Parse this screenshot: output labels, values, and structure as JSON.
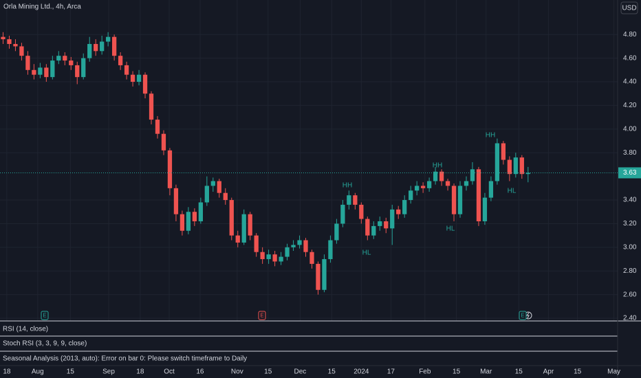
{
  "chart_data": {
    "type": "candlestick",
    "title": "Orla Mining Ltd., 4h, Arca",
    "currency": "USD",
    "up_color": "#26a69a",
    "down_color": "#ef5350",
    "grid": true,
    "open": [
      4.78,
      4.76,
      4.72,
      4.7,
      4.62,
      4.5,
      4.46,
      4.52,
      4.44,
      4.58,
      4.62,
      4.58,
      4.54,
      4.44,
      4.6,
      4.72,
      4.66,
      4.74,
      4.78,
      4.62,
      4.54,
      4.46,
      4.4,
      4.46,
      4.3,
      4.08,
      3.96,
      3.82,
      3.5,
      3.28,
      3.14,
      3.3,
      3.22,
      3.38,
      3.52,
      3.56,
      3.46,
      3.4,
      3.1,
      3.04,
      3.28,
      3.1,
      2.96,
      2.9,
      2.94,
      2.88,
      2.92,
      3.0,
      3.02,
      3.06,
      2.96,
      2.86,
      2.64,
      2.9,
      3.06,
      3.2,
      3.36,
      3.44,
      3.36,
      3.24,
      3.1,
      3.18,
      3.22,
      3.16,
      3.32,
      3.28,
      3.4,
      3.48,
      3.52,
      3.5,
      3.56,
      3.64,
      3.56,
      3.52,
      3.28,
      3.52,
      3.56,
      3.66,
      3.22,
      3.42,
      3.56,
      3.88,
      3.74,
      3.62,
      3.76,
      3.62
    ],
    "high": [
      4.82,
      4.79,
      4.76,
      4.73,
      4.66,
      4.55,
      4.56,
      4.55,
      4.62,
      4.66,
      4.65,
      4.61,
      4.57,
      4.64,
      4.78,
      4.76,
      4.79,
      4.82,
      4.8,
      4.65,
      4.57,
      4.49,
      4.5,
      4.48,
      4.32,
      4.11,
      3.99,
      3.84,
      3.53,
      3.31,
      3.34,
      3.33,
      3.42,
      3.6,
      3.59,
      3.58,
      3.5,
      3.42,
      3.14,
      3.32,
      3.3,
      3.12,
      3.0,
      2.98,
      2.97,
      2.96,
      3.03,
      3.06,
      3.1,
      3.08,
      2.98,
      2.88,
      2.94,
      3.1,
      3.24,
      3.4,
      3.48,
      3.46,
      3.38,
      3.26,
      3.22,
      3.26,
      3.25,
      3.36,
      3.35,
      3.44,
      3.52,
      3.56,
      3.55,
      3.59,
      3.68,
      3.66,
      3.58,
      3.54,
      3.56,
      3.6,
      3.72,
      3.68,
      3.46,
      3.6,
      3.92,
      3.9,
      3.77,
      3.8,
      3.78,
      3.68
    ],
    "low": [
      4.72,
      4.68,
      4.66,
      4.58,
      4.46,
      4.42,
      4.43,
      4.4,
      4.42,
      4.55,
      4.54,
      4.5,
      4.38,
      4.42,
      4.57,
      4.62,
      4.63,
      4.7,
      4.58,
      4.5,
      4.42,
      4.36,
      4.37,
      4.26,
      4.04,
      3.92,
      3.78,
      3.44,
      3.22,
      3.1,
      3.11,
      3.18,
      3.2,
      3.35,
      3.47,
      3.42,
      3.36,
      3.06,
      3.0,
      3.02,
      3.06,
      2.92,
      2.86,
      2.86,
      2.84,
      2.85,
      2.89,
      2.97,
      2.99,
      2.92,
      2.82,
      2.6,
      2.62,
      2.87,
      3.03,
      3.17,
      3.32,
      3.32,
      3.2,
      3.06,
      3.07,
      3.14,
      3.12,
      3.02,
      3.24,
      3.25,
      3.37,
      3.44,
      3.46,
      3.47,
      3.53,
      3.52,
      3.48,
      3.22,
      3.25,
      3.48,
      3.53,
      3.18,
      3.19,
      3.39,
      3.53,
      3.7,
      3.56,
      3.59,
      3.58,
      3.55
    ],
    "close": [
      4.76,
      4.72,
      4.7,
      4.62,
      4.5,
      4.46,
      4.52,
      4.44,
      4.58,
      4.62,
      4.58,
      4.54,
      4.44,
      4.6,
      4.72,
      4.66,
      4.74,
      4.78,
      4.62,
      4.54,
      4.46,
      4.4,
      4.46,
      4.3,
      4.08,
      3.96,
      3.82,
      3.5,
      3.28,
      3.14,
      3.3,
      3.22,
      3.38,
      3.52,
      3.56,
      3.46,
      3.4,
      3.1,
      3.04,
      3.28,
      3.1,
      2.96,
      2.9,
      2.94,
      2.88,
      2.92,
      3.0,
      3.02,
      3.06,
      2.96,
      2.86,
      2.64,
      2.9,
      3.06,
      3.2,
      3.36,
      3.44,
      3.36,
      3.24,
      3.1,
      3.18,
      3.22,
      3.16,
      3.32,
      3.28,
      3.4,
      3.48,
      3.52,
      3.5,
      3.56,
      3.64,
      3.56,
      3.52,
      3.28,
      3.52,
      3.56,
      3.66,
      3.22,
      3.42,
      3.56,
      3.88,
      3.74,
      3.62,
      3.76,
      3.62,
      3.63
    ],
    "ylim": [
      2.377,
      5.092
    ],
    "yticks": [
      {
        "value": 2.4,
        "label": "2.40"
      },
      {
        "value": 2.6,
        "label": "2.60"
      },
      {
        "value": 2.8,
        "label": "2.80"
      },
      {
        "value": 3.0,
        "label": "3.00"
      },
      {
        "value": 3.2,
        "label": "3.20"
      },
      {
        "value": 3.4,
        "label": "3.40"
      },
      {
        "value": 3.8,
        "label": "3.80"
      },
      {
        "value": 4.0,
        "label": "4.00"
      },
      {
        "value": 4.2,
        "label": "4.20"
      },
      {
        "value": 4.4,
        "label": "4.40"
      },
      {
        "value": 4.6,
        "label": "4.60"
      },
      {
        "value": 4.8,
        "label": "4.80"
      }
    ],
    "xlim": [
      -0.5,
      99.5
    ],
    "xticks": [
      {
        "value": 0.6,
        "label": "18"
      },
      {
        "value": 5.6,
        "label": "Aug"
      },
      {
        "value": 10.9,
        "label": "15"
      },
      {
        "value": 17.1,
        "label": "Sep"
      },
      {
        "value": 22.2,
        "label": "18"
      },
      {
        "value": 26.9,
        "label": "Oct"
      },
      {
        "value": 31.9,
        "label": "16"
      },
      {
        "value": 37.9,
        "label": "Nov"
      },
      {
        "value": 42.9,
        "label": "15"
      },
      {
        "value": 48.1,
        "label": "Dec"
      },
      {
        "value": 53.2,
        "label": "15"
      },
      {
        "value": 58,
        "label": "2024"
      },
      {
        "value": 62.8,
        "label": "17"
      },
      {
        "value": 68.3,
        "label": "Feb"
      },
      {
        "value": 73.4,
        "label": "15"
      },
      {
        "value": 78.2,
        "label": "Mar"
      },
      {
        "value": 83.5,
        "label": "15"
      },
      {
        "value": 88.3,
        "label": "Apr"
      },
      {
        "value": 93.0,
        "label": "15"
      },
      {
        "value": 98.9,
        "label": "May"
      }
    ],
    "last_price": 3.63,
    "annotations": [
      "HH",
      "HL",
      "HH",
      "HL",
      "HH",
      "HL"
    ]
  },
  "events": [
    {
      "label": "E",
      "color": "#26a69a"
    },
    {
      "label": "E",
      "color": "#ef5350"
    },
    {
      "label": "E",
      "color": "#26a69a"
    }
  ],
  "panels": [
    "RSI (14, close)",
    "Stoch RSI (3, 3, 9, 9, close)",
    "Seasonal Analysis (2013, auto): Error on bar 0: Please switch timeframe to Daily"
  ]
}
